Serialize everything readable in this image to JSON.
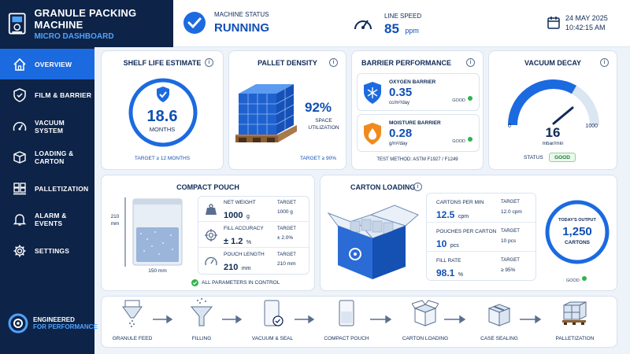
{
  "brand": {
    "title": "GRANULE PACKING MACHINE",
    "subtitle": "MICRO DASHBOARD"
  },
  "status": {
    "label": "MACHINE STATUS",
    "value": "RUNNING"
  },
  "speed": {
    "label": "LINE SPEED",
    "value": "85",
    "unit": "ppm"
  },
  "datetime": {
    "date": "24 MAY 2025",
    "time": "10:42:15 AM"
  },
  "nav": [
    {
      "label": "OVERVIEW",
      "icon": "home-icon"
    },
    {
      "label": "FILM & BARRIER",
      "icon": "shield-icon"
    },
    {
      "label": "VACUUM SYSTEM",
      "icon": "gauge-icon"
    },
    {
      "label": "LOADING & CARTON",
      "icon": "box-icon"
    },
    {
      "label": "PALLETIZATION",
      "icon": "pallet-icon"
    },
    {
      "label": "ALARM & EVENTS",
      "icon": "bell-icon"
    },
    {
      "label": "SETTINGS",
      "icon": "gear-icon"
    }
  ],
  "footer": {
    "line1": "ENGINEERED",
    "line2": "FOR PERFORMANCE"
  },
  "shelf": {
    "title": "SHELF LIFE ESTIMATE",
    "value": "18.6",
    "unit": "MONTHS",
    "target": "TARGET ≥ 12 MONTHS"
  },
  "pallet": {
    "title": "PALLET DENSITY",
    "value": "92%",
    "label1": "SPACE",
    "label2": "UTILIZATION",
    "target": "TARGET ≥ 90%"
  },
  "barrier": {
    "title": "BARRIER PERFORMANCE",
    "oxygen": {
      "label": "OXYGEN BARRIER",
      "value": "0.35",
      "unit": "cc/m²/day",
      "status": "GOOD"
    },
    "moisture": {
      "label": "MOISTURE BARRIER",
      "value": "0.28",
      "unit": "g/m²/day",
      "status": "GOOD"
    },
    "method": "TEST METHOD: ASTM F1927 / F1249"
  },
  "vacuum": {
    "title": "VACUUM DECAY",
    "min": "0",
    "max": "1000",
    "value": "16",
    "unit": "mbar/min",
    "status_label": "STATUS",
    "status": "GOOD",
    "level": 0.016
  },
  "pouch": {
    "title": "COMPACT POUCH",
    "height": "210",
    "height_unit": "mm",
    "width": "150 mm",
    "rows": [
      {
        "label": "NET WEIGHT",
        "value": "1000",
        "unit": "g",
        "target_label": "TARGET",
        "target": "1000 g",
        "icon": "weight-icon"
      },
      {
        "label": "FILL ACCURACY",
        "value": "± 1.2",
        "unit": "%",
        "target_label": "TARGET",
        "target": "± 2.0%",
        "icon": "target-icon"
      },
      {
        "label": "POUCH LENGTH",
        "value": "210",
        "unit": "mm",
        "target_label": "TARGET",
        "target": "210 mm",
        "icon": "gauge-icon"
      }
    ],
    "status": "ALL PARAMETERS IN CONTROL"
  },
  "carton": {
    "title": "CARTON LOADING",
    "rows": [
      {
        "label": "CARTONS PER MIN",
        "value": "12.5",
        "unit": "cpm",
        "target_label": "TARGET",
        "target": "12.0 cpm"
      },
      {
        "label": "POUCHES PER CARTON",
        "value": "10",
        "unit": "pcs",
        "target_label": "TARGET",
        "target": "10 pcs"
      },
      {
        "label": "FILL RATE",
        "value": "98.1",
        "unit": "%",
        "target_label": "TARGET",
        "target": "≥ 95%"
      }
    ],
    "output_label": "TODAY'S OUTPUT",
    "output_value": "1,250",
    "output_unit": "CARTONS",
    "status": "GOOD"
  },
  "process": [
    "GRANULE FEED",
    "FILLING",
    "VACUUM & SEAL",
    "COMPACT POUCH",
    "CARTON LOADING",
    "CASE SEALING",
    "PALLETIZATION"
  ]
}
